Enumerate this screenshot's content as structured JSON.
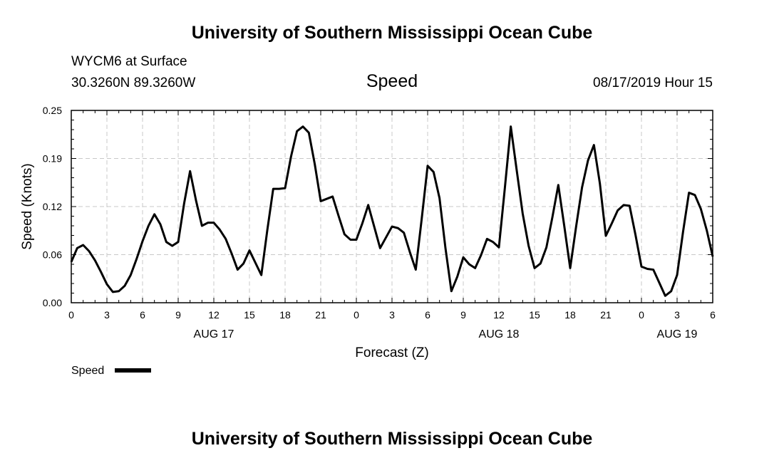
{
  "header": {
    "title_top": "University of Southern Mississippi Ocean Cube",
    "title_bottom": "University of Southern Mississippi Ocean Cube"
  },
  "station": {
    "name": "WYCM6 at Surface",
    "coords": "30.3260N 89.3260W",
    "datetime": "08/17/2019 Hour 15"
  },
  "chart_data": {
    "type": "line",
    "title": "Speed",
    "xlabel": "Forecast (Z)",
    "ylabel": "Speed (Knots)",
    "ylim": [
      0,
      0.25
    ],
    "yticks": [
      "0.00",
      "0.06",
      "0.12",
      "0.19",
      "0.25"
    ],
    "xticks": [
      "0",
      "3",
      "6",
      "9",
      "12",
      "15",
      "18",
      "21",
      "0",
      "3",
      "6",
      "9",
      "12",
      "15",
      "18",
      "21",
      "0",
      "3",
      "6"
    ],
    "date_labels": [
      "AUG 17",
      "AUG 18",
      "AUG 19"
    ],
    "grid": true,
    "legend": {
      "placement": "bottom-left",
      "label": "Speed"
    },
    "series": [
      {
        "name": "Speed",
        "color": "#000000",
        "x_hours_from_start": [
          0,
          0.5,
          1,
          1.5,
          2,
          2.5,
          3,
          3.5,
          4,
          4.5,
          5,
          5.5,
          6,
          6.5,
          7,
          7.5,
          8,
          8.5,
          9,
          9.5,
          10,
          10.5,
          11,
          11.5,
          12,
          12.5,
          13,
          13.5,
          14,
          14.5,
          15,
          15.5,
          16,
          16.5,
          17,
          17.5,
          18,
          18.5,
          19,
          19.5,
          20,
          20.5,
          21,
          21.5,
          22,
          22.5,
          23,
          23.5,
          24,
          24.5,
          25,
          25.5,
          26,
          26.5,
          27,
          27.5,
          28,
          28.5,
          29,
          29.5,
          30,
          30.5,
          31,
          31.5,
          32,
          32.5,
          33,
          33.5,
          34,
          34.5,
          35,
          35.5,
          36,
          36.5,
          37,
          37.5,
          38,
          38.5,
          39,
          39.5,
          40,
          40.5,
          41,
          41.5,
          42,
          42.5,
          43,
          43.5,
          44,
          44.5,
          45,
          45.5,
          46,
          46.5,
          47,
          47.5,
          48,
          48.5,
          49,
          49.5,
          50,
          50.5,
          51,
          51.5,
          52,
          52.5,
          53,
          53.5,
          54
        ],
        "values": [
          0.053,
          0.071,
          0.075,
          0.067,
          0.055,
          0.04,
          0.024,
          0.014,
          0.015,
          0.022,
          0.036,
          0.057,
          0.08,
          0.1,
          0.115,
          0.102,
          0.079,
          0.074,
          0.079,
          0.129,
          0.171,
          0.133,
          0.1,
          0.104,
          0.104,
          0.095,
          0.083,
          0.064,
          0.043,
          0.051,
          0.068,
          0.052,
          0.036,
          0.094,
          0.148,
          0.148,
          0.149,
          0.19,
          0.223,
          0.229,
          0.221,
          0.18,
          0.132,
          0.135,
          0.138,
          0.113,
          0.089,
          0.082,
          0.082,
          0.103,
          0.127,
          0.099,
          0.071,
          0.085,
          0.099,
          0.097,
          0.091,
          0.066,
          0.043,
          0.109,
          0.178,
          0.17,
          0.136,
          0.071,
          0.015,
          0.034,
          0.059,
          0.05,
          0.045,
          0.062,
          0.083,
          0.079,
          0.072,
          0.149,
          0.229,
          0.172,
          0.116,
          0.074,
          0.045,
          0.051,
          0.072,
          0.111,
          0.153,
          0.1,
          0.045,
          0.099,
          0.15,
          0.185,
          0.205,
          0.155,
          0.087,
          0.103,
          0.12,
          0.127,
          0.126,
          0.088,
          0.047,
          0.044,
          0.043,
          0.026,
          0.009,
          0.015,
          0.036,
          0.092,
          0.143,
          0.14,
          0.122,
          0.094,
          0.06
        ]
      }
    ]
  }
}
